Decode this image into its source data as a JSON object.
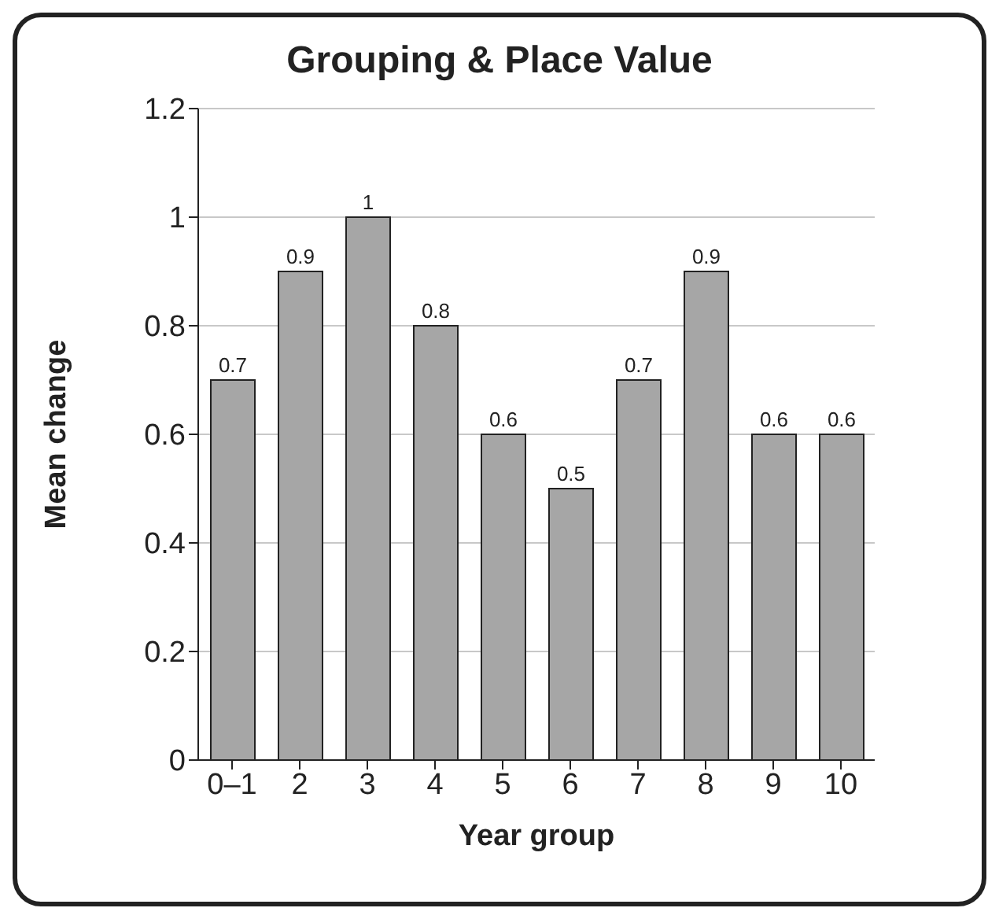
{
  "chart_data": {
    "type": "bar",
    "title": "Grouping & Place Value",
    "xlabel": "Year group",
    "ylabel": "Mean change",
    "categories": [
      "0–1",
      "2",
      "3",
      "4",
      "5",
      "6",
      "7",
      "8",
      "9",
      "10"
    ],
    "values": [
      0.7,
      0.9,
      1,
      0.8,
      0.6,
      0.5,
      0.7,
      0.9,
      0.6,
      0.6
    ],
    "color": "#a6a6a6",
    "ylim": [
      0,
      1.2
    ],
    "yticks": [
      0,
      0.2,
      0.4,
      0.6,
      0.8,
      1,
      1.2
    ],
    "grid": "y",
    "data_labels": true
  }
}
